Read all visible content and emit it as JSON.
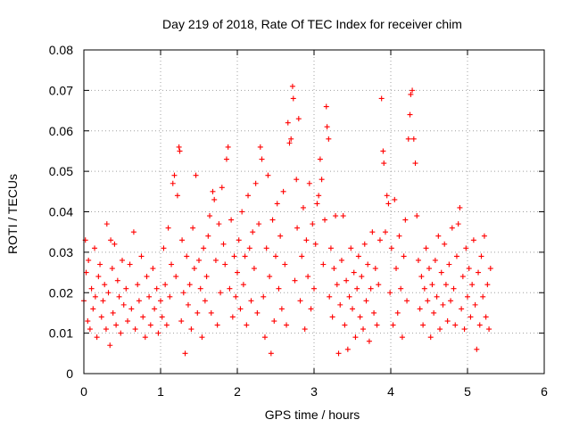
{
  "chart_data": {
    "type": "scatter",
    "title": "Day 219 of 2018, Rate Of TEC Index for receiver chim",
    "xlabel": "GPS time / hours",
    "ylabel": "ROTI / TECUs",
    "xlim": [
      0,
      6
    ],
    "ylim": [
      0,
      0.08
    ],
    "xticks": [
      0,
      1,
      2,
      3,
      4,
      5,
      6
    ],
    "yticks": [
      0,
      0.01,
      0.02,
      0.03,
      0.04,
      0.05,
      0.06,
      0.07,
      0.08
    ],
    "xtick_labels": [
      "0",
      "1",
      "2",
      "3",
      "4",
      "5",
      "6"
    ],
    "ytick_labels": [
      "0",
      "0.01",
      "0.02",
      "0.03",
      "0.04",
      "0.05",
      "0.06",
      "0.07",
      "0.08"
    ],
    "grid": true,
    "marker": "+",
    "color": "#ff0000",
    "series": [
      {
        "name": "ROTI",
        "points": [
          [
            0.0,
            0.018
          ],
          [
            0.02,
            0.033
          ],
          [
            0.03,
            0.025
          ],
          [
            0.05,
            0.013
          ],
          [
            0.06,
            0.028
          ],
          [
            0.08,
            0.011
          ],
          [
            0.1,
            0.021
          ],
          [
            0.12,
            0.016
          ],
          [
            0.14,
            0.031
          ],
          [
            0.15,
            0.019
          ],
          [
            0.17,
            0.009
          ],
          [
            0.19,
            0.024
          ],
          [
            0.21,
            0.027
          ],
          [
            0.23,
            0.014
          ],
          [
            0.25,
            0.018
          ],
          [
            0.27,
            0.022
          ],
          [
            0.29,
            0.011
          ],
          [
            0.3,
            0.037
          ],
          [
            0.32,
            0.02
          ],
          [
            0.34,
            0.007
          ],
          [
            0.35,
            0.033
          ],
          [
            0.37,
            0.026
          ],
          [
            0.38,
            0.015
          ],
          [
            0.4,
            0.032
          ],
          [
            0.42,
            0.012
          ],
          [
            0.44,
            0.023
          ],
          [
            0.46,
            0.019
          ],
          [
            0.48,
            0.01
          ],
          [
            0.5,
            0.028
          ],
          [
            0.52,
            0.017
          ],
          [
            0.55,
            0.021
          ],
          [
            0.57,
            0.013
          ],
          [
            0.6,
            0.027
          ],
          [
            0.62,
            0.016
          ],
          [
            0.65,
            0.035
          ],
          [
            0.67,
            0.011
          ],
          [
            0.7,
            0.022
          ],
          [
            0.72,
            0.018
          ],
          [
            0.75,
            0.029
          ],
          [
            0.77,
            0.014
          ],
          [
            0.8,
            0.009
          ],
          [
            0.82,
            0.024
          ],
          [
            0.85,
            0.019
          ],
          [
            0.87,
            0.012
          ],
          [
            0.9,
            0.026
          ],
          [
            0.92,
            0.016
          ],
          [
            0.95,
            0.021
          ],
          [
            0.97,
            0.01
          ],
          [
            1.0,
            0.018
          ],
          [
            1.02,
            0.014
          ],
          [
            1.04,
            0.031
          ],
          [
            1.06,
            0.022
          ],
          [
            1.08,
            0.012
          ],
          [
            1.1,
            0.036
          ],
          [
            1.12,
            0.019
          ],
          [
            1.14,
            0.027
          ],
          [
            1.16,
            0.047
          ],
          [
            1.18,
            0.049
          ],
          [
            1.2,
            0.024
          ],
          [
            1.22,
            0.044
          ],
          [
            1.24,
            0.056
          ],
          [
            1.25,
            0.055
          ],
          [
            1.27,
            0.013
          ],
          [
            1.28,
            0.033
          ],
          [
            1.3,
            0.02
          ],
          [
            1.32,
            0.005
          ],
          [
            1.34,
            0.029
          ],
          [
            1.36,
            0.017
          ],
          [
            1.38,
            0.022
          ],
          [
            1.4,
            0.011
          ],
          [
            1.42,
            0.036
          ],
          [
            1.44,
            0.026
          ],
          [
            1.46,
            0.049
          ],
          [
            1.48,
            0.015
          ],
          [
            1.5,
            0.028
          ],
          [
            1.52,
            0.021
          ],
          [
            1.54,
            0.009
          ],
          [
            1.56,
            0.031
          ],
          [
            1.58,
            0.018
          ],
          [
            1.6,
            0.024
          ],
          [
            1.62,
            0.034
          ],
          [
            1.64,
            0.039
          ],
          [
            1.66,
            0.015
          ],
          [
            1.68,
            0.045
          ],
          [
            1.7,
            0.043
          ],
          [
            1.72,
            0.028
          ],
          [
            1.74,
            0.012
          ],
          [
            1.76,
            0.037
          ],
          [
            1.78,
            0.02
          ],
          [
            1.8,
            0.046
          ],
          [
            1.82,
            0.032
          ],
          [
            1.84,
            0.027
          ],
          [
            1.86,
            0.053
          ],
          [
            1.88,
            0.056
          ],
          [
            1.9,
            0.021
          ],
          [
            1.92,
            0.038
          ],
          [
            1.94,
            0.014
          ],
          [
            1.96,
            0.029
          ],
          [
            1.98,
            0.019
          ],
          [
            2.0,
            0.025
          ],
          [
            2.02,
            0.033
          ],
          [
            2.04,
            0.016
          ],
          [
            2.06,
            0.04
          ],
          [
            2.08,
            0.022
          ],
          [
            2.1,
            0.029
          ],
          [
            2.12,
            0.012
          ],
          [
            2.14,
            0.044
          ],
          [
            2.16,
            0.031
          ],
          [
            2.18,
            0.018
          ],
          [
            2.2,
            0.035
          ],
          [
            2.22,
            0.026
          ],
          [
            2.24,
            0.047
          ],
          [
            2.26,
            0.015
          ],
          [
            2.28,
            0.037
          ],
          [
            2.3,
            0.056
          ],
          [
            2.32,
            0.053
          ],
          [
            2.34,
            0.019
          ],
          [
            2.36,
            0.009
          ],
          [
            2.38,
            0.031
          ],
          [
            2.4,
            0.049
          ],
          [
            2.42,
            0.024
          ],
          [
            2.44,
            0.005
          ],
          [
            2.46,
            0.038
          ],
          [
            2.48,
            0.013
          ],
          [
            2.5,
            0.029
          ],
          [
            2.52,
            0.042
          ],
          [
            2.54,
            0.021
          ],
          [
            2.56,
            0.034
          ],
          [
            2.58,
            0.016
          ],
          [
            2.6,
            0.045
          ],
          [
            2.62,
            0.027
          ],
          [
            2.64,
            0.012
          ],
          [
            2.66,
            0.062
          ],
          [
            2.68,
            0.057
          ],
          [
            2.7,
            0.058
          ],
          [
            2.72,
            0.071
          ],
          [
            2.73,
            0.068
          ],
          [
            2.75,
            0.023
          ],
          [
            2.77,
            0.048
          ],
          [
            2.78,
            0.036
          ],
          [
            2.8,
            0.063
          ],
          [
            2.82,
            0.018
          ],
          [
            2.84,
            0.029
          ],
          [
            2.86,
            0.041
          ],
          [
            2.88,
            0.011
          ],
          [
            2.9,
            0.033
          ],
          [
            2.92,
            0.024
          ],
          [
            2.94,
            0.047
          ],
          [
            2.96,
            0.016
          ],
          [
            2.98,
            0.037
          ],
          [
            3.0,
            0.021
          ],
          [
            3.02,
            0.032
          ],
          [
            3.04,
            0.042
          ],
          [
            3.06,
            0.044
          ],
          [
            3.08,
            0.053
          ],
          [
            3.1,
            0.048
          ],
          [
            3.12,
            0.027
          ],
          [
            3.14,
            0.038
          ],
          [
            3.16,
            0.066
          ],
          [
            3.17,
            0.061
          ],
          [
            3.19,
            0.058
          ],
          [
            3.2,
            0.019
          ],
          [
            3.22,
            0.031
          ],
          [
            3.24,
            0.014
          ],
          [
            3.26,
            0.026
          ],
          [
            3.28,
            0.039
          ],
          [
            3.3,
            0.022
          ],
          [
            3.32,
            0.005
          ],
          [
            3.34,
            0.017
          ],
          [
            3.36,
            0.028
          ],
          [
            3.38,
            0.039
          ],
          [
            3.4,
            0.012
          ],
          [
            3.42,
            0.023
          ],
          [
            3.44,
            0.006
          ],
          [
            3.46,
            0.019
          ],
          [
            3.48,
            0.031
          ],
          [
            3.5,
            0.016
          ],
          [
            3.52,
            0.025
          ],
          [
            3.54,
            0.009
          ],
          [
            3.56,
            0.021
          ],
          [
            3.58,
            0.029
          ],
          [
            3.6,
            0.014
          ],
          [
            3.62,
            0.024
          ],
          [
            3.64,
            0.011
          ],
          [
            3.66,
            0.032
          ],
          [
            3.68,
            0.018
          ],
          [
            3.7,
            0.027
          ],
          [
            3.72,
            0.008
          ],
          [
            3.74,
            0.021
          ],
          [
            3.76,
            0.035
          ],
          [
            3.78,
            0.015
          ],
          [
            3.8,
            0.026
          ],
          [
            3.82,
            0.012
          ],
          [
            3.84,
            0.022
          ],
          [
            3.86,
            0.033
          ],
          [
            3.88,
            0.068
          ],
          [
            3.9,
            0.055
          ],
          [
            3.91,
            0.052
          ],
          [
            3.93,
            0.035
          ],
          [
            3.95,
            0.044
          ],
          [
            3.97,
            0.042
          ],
          [
            3.99,
            0.02
          ],
          [
            4.01,
            0.031
          ],
          [
            4.03,
            0.012
          ],
          [
            4.05,
            0.043
          ],
          [
            4.07,
            0.026
          ],
          [
            4.09,
            0.015
          ],
          [
            4.11,
            0.034
          ],
          [
            4.13,
            0.021
          ],
          [
            4.15,
            0.009
          ],
          [
            4.17,
            0.029
          ],
          [
            4.19,
            0.038
          ],
          [
            4.21,
            0.018
          ],
          [
            4.23,
            0.058
          ],
          [
            4.25,
            0.064
          ],
          [
            4.26,
            0.069
          ],
          [
            4.28,
            0.07
          ],
          [
            4.3,
            0.058
          ],
          [
            4.32,
            0.052
          ],
          [
            4.34,
            0.039
          ],
          [
            4.36,
            0.028
          ],
          [
            4.38,
            0.016
          ],
          [
            4.4,
            0.024
          ],
          [
            4.42,
            0.012
          ],
          [
            4.44,
            0.021
          ],
          [
            4.46,
            0.031
          ],
          [
            4.48,
            0.018
          ],
          [
            4.5,
            0.026
          ],
          [
            4.52,
            0.009
          ],
          [
            4.54,
            0.022
          ],
          [
            4.56,
            0.015
          ],
          [
            4.58,
            0.028
          ],
          [
            4.6,
            0.019
          ],
          [
            4.62,
            0.034
          ],
          [
            4.64,
            0.011
          ],
          [
            4.66,
            0.025
          ],
          [
            4.68,
            0.017
          ],
          [
            4.7,
            0.032
          ],
          [
            4.72,
            0.022
          ],
          [
            4.74,
            0.013
          ],
          [
            4.76,
            0.027
          ],
          [
            4.78,
            0.018
          ],
          [
            4.8,
            0.036
          ],
          [
            4.82,
            0.021
          ],
          [
            4.84,
            0.012
          ],
          [
            4.86,
            0.029
          ],
          [
            4.88,
            0.037
          ],
          [
            4.9,
            0.041
          ],
          [
            4.92,
            0.016
          ],
          [
            4.94,
            0.024
          ],
          [
            4.96,
            0.011
          ],
          [
            4.98,
            0.031
          ],
          [
            5.0,
            0.019
          ],
          [
            5.02,
            0.026
          ],
          [
            5.04,
            0.014
          ],
          [
            5.06,
            0.022
          ],
          [
            5.08,
            0.033
          ],
          [
            5.1,
            0.017
          ],
          [
            5.12,
            0.006
          ],
          [
            5.14,
            0.025
          ],
          [
            5.16,
            0.012
          ],
          [
            5.18,
            0.029
          ],
          [
            5.2,
            0.019
          ],
          [
            5.22,
            0.034
          ],
          [
            5.24,
            0.014
          ],
          [
            5.26,
            0.022
          ],
          [
            5.28,
            0.011
          ],
          [
            5.3,
            0.026
          ]
        ]
      }
    ]
  }
}
